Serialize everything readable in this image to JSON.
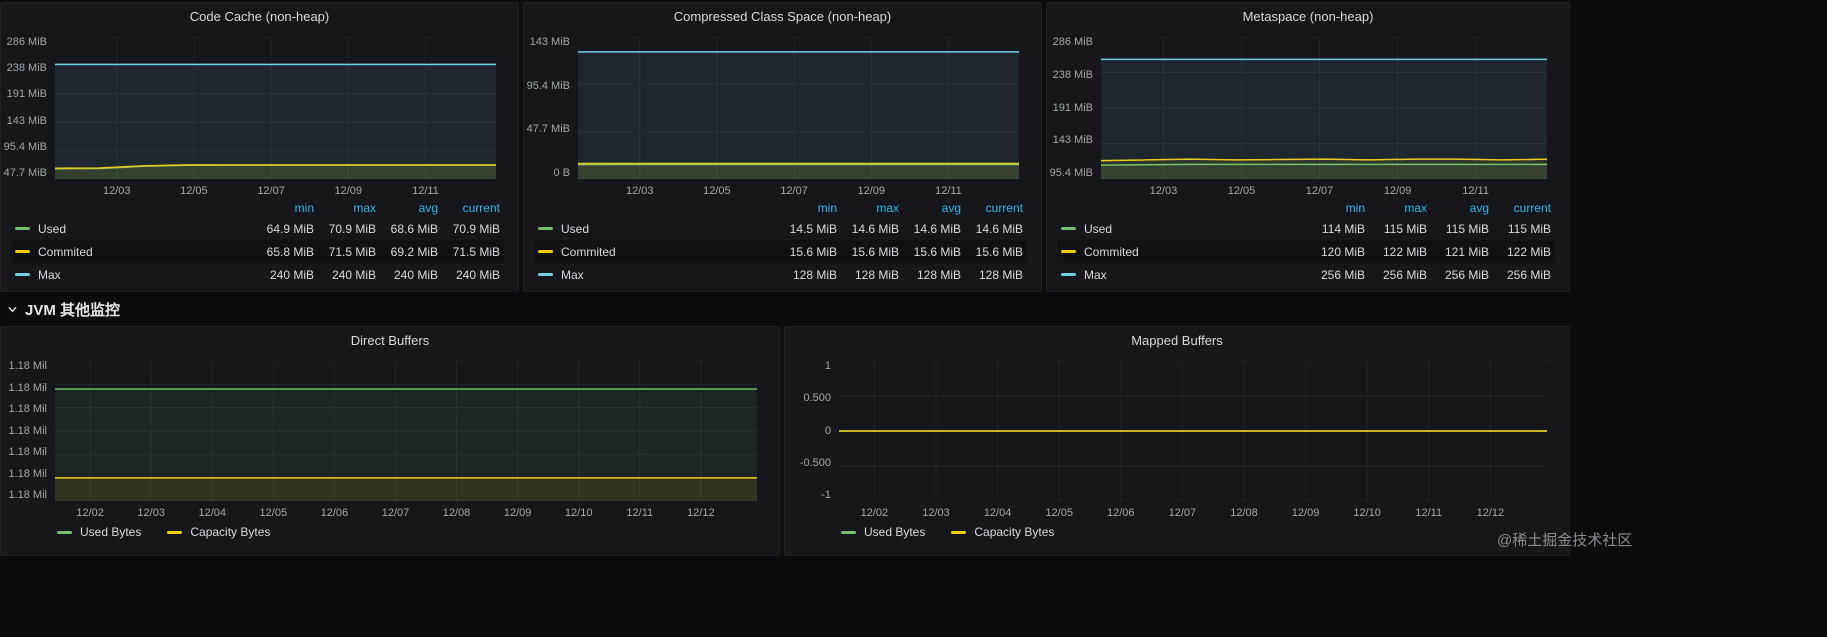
{
  "colors": {
    "page_bg": "#0b0c0e",
    "panel_bg": "#15171c",
    "grid": "#23262b",
    "text": "#d8d9da",
    "muted": "#a2a6ad",
    "header_blue": "#33b5e5",
    "green": "#73bf69",
    "yellow": "#f2cc0c",
    "cyan": "#6ed0e0"
  },
  "section": {
    "title": "JVM 其他监控",
    "prefix": "JVM"
  },
  "watermark": "@稀土掘金技术社区",
  "panels": [
    {
      "title": "Code Cache (non-heap)",
      "legend": {
        "headers": [
          "min",
          "max",
          "avg",
          "current"
        ],
        "rows": [
          {
            "label": "Used",
            "color": "green",
            "values": [
              "64.9 MiB",
              "70.9 MiB",
              "68.6 MiB",
              "70.9 MiB"
            ]
          },
          {
            "label": "Commited",
            "color": "yellow",
            "values": [
              "65.8 MiB",
              "71.5 MiB",
              "69.2 MiB",
              "71.5 MiB"
            ]
          },
          {
            "label": "Max",
            "color": "cyan",
            "values": [
              "240 MiB",
              "240 MiB",
              "240 MiB",
              "240 MiB"
            ]
          }
        ]
      }
    },
    {
      "title": "Compressed Class Space (non-heap)",
      "legend": {
        "headers": [
          "min",
          "max",
          "avg",
          "current"
        ],
        "rows": [
          {
            "label": "Used",
            "color": "green",
            "values": [
              "14.5 MiB",
              "14.6 MiB",
              "14.6 MiB",
              "14.6 MiB"
            ]
          },
          {
            "label": "Commited",
            "color": "yellow",
            "values": [
              "15.6 MiB",
              "15.6 MiB",
              "15.6 MiB",
              "15.6 MiB"
            ]
          },
          {
            "label": "Max",
            "color": "cyan",
            "values": [
              "128 MiB",
              "128 MiB",
              "128 MiB",
              "128 MiB"
            ]
          }
        ]
      }
    },
    {
      "title": "Metaspace (non-heap)",
      "legend": {
        "headers": [
          "min",
          "max",
          "avg",
          "current"
        ],
        "rows": [
          {
            "label": "Used",
            "color": "green",
            "values": [
              "114 MiB",
              "115 MiB",
              "115 MiB",
              "115 MiB"
            ]
          },
          {
            "label": "Commited",
            "color": "yellow",
            "values": [
              "120 MiB",
              "122 MiB",
              "121 MiB",
              "122 MiB"
            ]
          },
          {
            "label": "Max",
            "color": "cyan",
            "values": [
              "256 MiB",
              "256 MiB",
              "256 MiB",
              "256 MiB"
            ]
          }
        ]
      }
    },
    {
      "title": "Direct Buffers",
      "legend_inline": [
        {
          "label": "Used Bytes",
          "color": "green"
        },
        {
          "label": "Capacity Bytes",
          "color": "yellow"
        }
      ]
    },
    {
      "title": "Mapped Buffers",
      "legend_inline": [
        {
          "label": "Used Bytes",
          "color": "green"
        },
        {
          "label": "Capacity Bytes",
          "color": "yellow"
        }
      ]
    }
  ],
  "chart_data": [
    {
      "type": "line",
      "title": "Code Cache (non-heap)",
      "unit": "MiB",
      "y_ticks": [
        "286 MiB",
        "238 MiB",
        "191 MiB",
        "143 MiB",
        "95.4 MiB",
        "47.7 MiB"
      ],
      "ymin": 47.7,
      "ymax": 286,
      "x_ticks": [
        "12/03",
        "12/05",
        "12/07",
        "12/09",
        "12/11"
      ],
      "x_start": 0.14,
      "x_end": 0.84,
      "series": [
        {
          "name": "Used",
          "color": "green",
          "values": [
            64.9,
            65.3,
            69.0,
            70.7,
            70.9,
            70.9,
            70.9,
            70.9,
            70.9,
            70.9,
            70.9
          ]
        },
        {
          "name": "Commited",
          "color": "yellow",
          "values": [
            65.8,
            66.2,
            69.8,
            71.4,
            71.5,
            71.5,
            71.5,
            71.5,
            71.5,
            71.5,
            71.5
          ]
        },
        {
          "name": "Max",
          "color": "cyan",
          "values": [
            240
          ]
        }
      ]
    },
    {
      "type": "line",
      "title": "Compressed Class Space (non-heap)",
      "unit": "MiB",
      "y_ticks": [
        "143 MiB",
        "95.4 MiB",
        "47.7 MiB",
        "0 B"
      ],
      "ymin": 0,
      "ymax": 143,
      "x_ticks": [
        "12/03",
        "12/05",
        "12/07",
        "12/09",
        "12/11"
      ],
      "x_start": 0.14,
      "x_end": 0.84,
      "series": [
        {
          "name": "Used",
          "color": "green",
          "values": [
            14.5,
            14.6,
            14.6,
            14.6,
            14.6,
            14.6,
            14.6,
            14.6,
            14.6,
            14.6,
            14.6
          ]
        },
        {
          "name": "Commited",
          "color": "yellow",
          "values": [
            15.6
          ]
        },
        {
          "name": "Max",
          "color": "cyan",
          "values": [
            128
          ]
        }
      ]
    },
    {
      "type": "line",
      "title": "Metaspace (non-heap)",
      "unit": "MiB",
      "y_ticks": [
        "286 MiB",
        "238 MiB",
        "191 MiB",
        "143 MiB",
        "95.4 MiB"
      ],
      "ymin": 95.4,
      "ymax": 286,
      "x_ticks": [
        "12/03",
        "12/05",
        "12/07",
        "12/09",
        "12/11"
      ],
      "x_start": 0.14,
      "x_end": 0.84,
      "series": [
        {
          "name": "Used",
          "color": "green",
          "values": [
            114,
            114.5,
            115,
            115,
            115,
            115,
            115,
            115,
            115,
            115,
            115
          ]
        },
        {
          "name": "Commited",
          "color": "yellow",
          "values": [
            120,
            121,
            122,
            121,
            121.5,
            122,
            121,
            122,
            122,
            121,
            122
          ]
        },
        {
          "name": "Max",
          "color": "cyan",
          "values": [
            256
          ]
        }
      ]
    },
    {
      "type": "line",
      "title": "Direct Buffers",
      "note": "All y-axis tick labels display 1.18 Mil; both series are flat at ~1.18 Mil (values below are normalized plot levels)",
      "y_ticks": [
        "1.18 Mil",
        "1.18 Mil",
        "1.18 Mil",
        "1.18 Mil",
        "1.18 Mil",
        "1.18 Mil",
        "1.18 Mil"
      ],
      "ymin": 0,
      "ymax": 1,
      "x_ticks": [
        "12/02",
        "12/03",
        "12/04",
        "12/05",
        "12/06",
        "12/07",
        "12/08",
        "12/09",
        "12/10",
        "12/11",
        "12/12"
      ],
      "x_start": 0.05,
      "x_end": 0.92,
      "series": [
        {
          "name": "Used Bytes",
          "color": "green",
          "value_label": "1.18 Mil",
          "values": [
            0.8
          ]
        },
        {
          "name": "Capacity Bytes",
          "color": "yellow",
          "value_label": "1.18 Mil",
          "values": [
            0.165
          ]
        }
      ]
    },
    {
      "type": "line",
      "title": "Mapped Buffers",
      "y_ticks": [
        "1",
        "0.500",
        "0",
        "-0.500",
        "-1"
      ],
      "ymin": -1,
      "ymax": 1,
      "x_ticks": [
        "12/02",
        "12/03",
        "12/04",
        "12/05",
        "12/06",
        "12/07",
        "12/08",
        "12/09",
        "12/10",
        "12/11",
        "12/12"
      ],
      "x_start": 0.05,
      "x_end": 0.92,
      "series": [
        {
          "name": "Used Bytes",
          "color": "green",
          "values": [
            0
          ]
        },
        {
          "name": "Capacity Bytes",
          "color": "yellow",
          "values": [
            0
          ]
        }
      ]
    }
  ]
}
